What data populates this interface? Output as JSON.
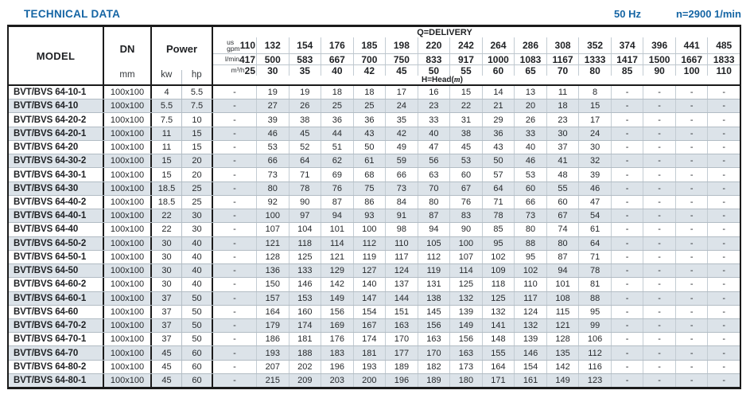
{
  "page": {
    "title": "TECHNICAL DATA",
    "frequency": "50 Hz",
    "speed": "n=2900 1/min",
    "accent_color": "#1565a4",
    "stripe_color": "#dce3e9"
  },
  "table": {
    "headers": {
      "model": "MODEL",
      "dn": "DN",
      "dn_unit": "mm",
      "power": "Power",
      "power_units": [
        "kw",
        "hp"
      ],
      "delivery_label": "Q=DELIVERY",
      "head_pre": "H=Head(",
      "head_m": "m",
      "head_post": ")",
      "units": {
        "gpm_prefix": "us",
        "gpm_label": "gpm",
        "lmin_label": "l/min",
        "m3h_label": "m³/h"
      },
      "gpm": [
        "110",
        "132",
        "154",
        "176",
        "185",
        "198",
        "220",
        "242",
        "264",
        "286",
        "308",
        "352",
        "374",
        "396",
        "441",
        "485"
      ],
      "lmin": [
        "417",
        "500",
        "583",
        "667",
        "700",
        "750",
        "833",
        "917",
        "1000",
        "1083",
        "1167",
        "1333",
        "1417",
        "1500",
        "1667",
        "1833"
      ],
      "m3h": [
        "25",
        "30",
        "35",
        "40",
        "42",
        "45",
        "50",
        "55",
        "60",
        "65",
        "70",
        "80",
        "85",
        "90",
        "100",
        "110"
      ]
    },
    "rows": [
      {
        "model": "BVT/BVS 64-10-1",
        "dn": "100x100",
        "kw": "4",
        "hp": "5.5",
        "head": [
          "-",
          "19",
          "19",
          "18",
          "18",
          "17",
          "16",
          "15",
          "14",
          "13",
          "11",
          "8",
          "-",
          "-",
          "-",
          "-"
        ]
      },
      {
        "model": "BVT/BVS 64-10",
        "dn": "100x100",
        "kw": "5.5",
        "hp": "7.5",
        "head": [
          "-",
          "27",
          "26",
          "25",
          "25",
          "24",
          "23",
          "22",
          "21",
          "20",
          "18",
          "15",
          "-",
          "-",
          "-",
          "-"
        ]
      },
      {
        "model": "BVT/BVS 64-20-2",
        "dn": "100x100",
        "kw": "7.5",
        "hp": "10",
        "head": [
          "-",
          "39",
          "38",
          "36",
          "36",
          "35",
          "33",
          "31",
          "29",
          "26",
          "23",
          "17",
          "-",
          "-",
          "-",
          "-"
        ]
      },
      {
        "model": "BVT/BVS 64-20-1",
        "dn": "100x100",
        "kw": "11",
        "hp": "15",
        "head": [
          "-",
          "46",
          "45",
          "44",
          "43",
          "42",
          "40",
          "38",
          "36",
          "33",
          "30",
          "24",
          "-",
          "-",
          "-",
          "-"
        ]
      },
      {
        "model": "BVT/BVS 64-20",
        "dn": "100x100",
        "kw": "11",
        "hp": "15",
        "head": [
          "-",
          "53",
          "52",
          "51",
          "50",
          "49",
          "47",
          "45",
          "43",
          "40",
          "37",
          "30",
          "-",
          "-",
          "-",
          "-"
        ]
      },
      {
        "model": "BVT/BVS 64-30-2",
        "dn": "100x100",
        "kw": "15",
        "hp": "20",
        "head": [
          "-",
          "66",
          "64",
          "62",
          "61",
          "59",
          "56",
          "53",
          "50",
          "46",
          "41",
          "32",
          "-",
          "-",
          "-",
          "-"
        ]
      },
      {
        "model": "BVT/BVS 64-30-1",
        "dn": "100x100",
        "kw": "15",
        "hp": "20",
        "head": [
          "-",
          "73",
          "71",
          "69",
          "68",
          "66",
          "63",
          "60",
          "57",
          "53",
          "48",
          "39",
          "-",
          "-",
          "-",
          "-"
        ]
      },
      {
        "model": "BVT/BVS 64-30",
        "dn": "100x100",
        "kw": "18.5",
        "hp": "25",
        "head": [
          "-",
          "80",
          "78",
          "76",
          "75",
          "73",
          "70",
          "67",
          "64",
          "60",
          "55",
          "46",
          "-",
          "-",
          "-",
          "-"
        ]
      },
      {
        "model": "BVT/BVS 64-40-2",
        "dn": "100x100",
        "kw": "18.5",
        "hp": "25",
        "head": [
          "-",
          "92",
          "90",
          "87",
          "86",
          "84",
          "80",
          "76",
          "71",
          "66",
          "60",
          "47",
          "-",
          "-",
          "-",
          "-"
        ]
      },
      {
        "model": "BVT/BVS 64-40-1",
        "dn": "100x100",
        "kw": "22",
        "hp": "30",
        "head": [
          "-",
          "100",
          "97",
          "94",
          "93",
          "91",
          "87",
          "83",
          "78",
          "73",
          "67",
          "54",
          "-",
          "-",
          "-",
          "-"
        ]
      },
      {
        "model": "BVT/BVS 64-40",
        "dn": "100x100",
        "kw": "22",
        "hp": "30",
        "head": [
          "-",
          "107",
          "104",
          "101",
          "100",
          "98",
          "94",
          "90",
          "85",
          "80",
          "74",
          "61",
          "-",
          "-",
          "-",
          "-"
        ]
      },
      {
        "model": "BVT/BVS 64-50-2",
        "dn": "100x100",
        "kw": "30",
        "hp": "40",
        "head": [
          "-",
          "121",
          "118",
          "114",
          "112",
          "110",
          "105",
          "100",
          "95",
          "88",
          "80",
          "64",
          "-",
          "-",
          "-",
          "-"
        ]
      },
      {
        "model": "BVT/BVS 64-50-1",
        "dn": "100x100",
        "kw": "30",
        "hp": "40",
        "head": [
          "-",
          "128",
          "125",
          "121",
          "119",
          "117",
          "112",
          "107",
          "102",
          "95",
          "87",
          "71",
          "-",
          "-",
          "-",
          "-"
        ]
      },
      {
        "model": "BVT/BVS 64-50",
        "dn": "100x100",
        "kw": "30",
        "hp": "40",
        "head": [
          "-",
          "136",
          "133",
          "129",
          "127",
          "124",
          "119",
          "114",
          "109",
          "102",
          "94",
          "78",
          "-",
          "-",
          "-",
          "-"
        ]
      },
      {
        "model": "BVT/BVS 64-60-2",
        "dn": "100x100",
        "kw": "30",
        "hp": "40",
        "head": [
          "-",
          "150",
          "146",
          "142",
          "140",
          "137",
          "131",
          "125",
          "118",
          "110",
          "101",
          "81",
          "-",
          "-",
          "-",
          "-"
        ]
      },
      {
        "model": "BVT/BVS 64-60-1",
        "dn": "100x100",
        "kw": "37",
        "hp": "50",
        "head": [
          "-",
          "157",
          "153",
          "149",
          "147",
          "144",
          "138",
          "132",
          "125",
          "117",
          "108",
          "88",
          "-",
          "-",
          "-",
          "-"
        ]
      },
      {
        "model": "BVT/BVS 64-60",
        "dn": "100x100",
        "kw": "37",
        "hp": "50",
        "head": [
          "-",
          "164",
          "160",
          "156",
          "154",
          "151",
          "145",
          "139",
          "132",
          "124",
          "115",
          "95",
          "-",
          "-",
          "-",
          "-"
        ]
      },
      {
        "model": "BVT/BVS 64-70-2",
        "dn": "100x100",
        "kw": "37",
        "hp": "50",
        "head": [
          "-",
          "179",
          "174",
          "169",
          "167",
          "163",
          "156",
          "149",
          "141",
          "132",
          "121",
          "99",
          "-",
          "-",
          "-",
          "-"
        ]
      },
      {
        "model": "BVT/BVS 64-70-1",
        "dn": "100x100",
        "kw": "37",
        "hp": "50",
        "head": [
          "-",
          "186",
          "181",
          "176",
          "174",
          "170",
          "163",
          "156",
          "148",
          "139",
          "128",
          "106",
          "-",
          "-",
          "-",
          "-"
        ]
      },
      {
        "model": "BVT/BVS 64-70",
        "dn": "100x100",
        "kw": "45",
        "hp": "60",
        "head": [
          "-",
          "193",
          "188",
          "183",
          "181",
          "177",
          "170",
          "163",
          "155",
          "146",
          "135",
          "112",
          "-",
          "-",
          "-",
          "-"
        ]
      },
      {
        "model": "BVT/BVS 64-80-2",
        "dn": "100x100",
        "kw": "45",
        "hp": "60",
        "head": [
          "-",
          "207",
          "202",
          "196",
          "193",
          "189",
          "182",
          "173",
          "164",
          "154",
          "142",
          "116",
          "-",
          "-",
          "-",
          "-"
        ]
      },
      {
        "model": "BVT/BVS 64-80-1",
        "dn": "100x100",
        "kw": "45",
        "hp": "60",
        "head": [
          "-",
          "215",
          "209",
          "203",
          "200",
          "196",
          "189",
          "180",
          "171",
          "161",
          "149",
          "123",
          "-",
          "-",
          "-",
          "-"
        ]
      }
    ]
  }
}
